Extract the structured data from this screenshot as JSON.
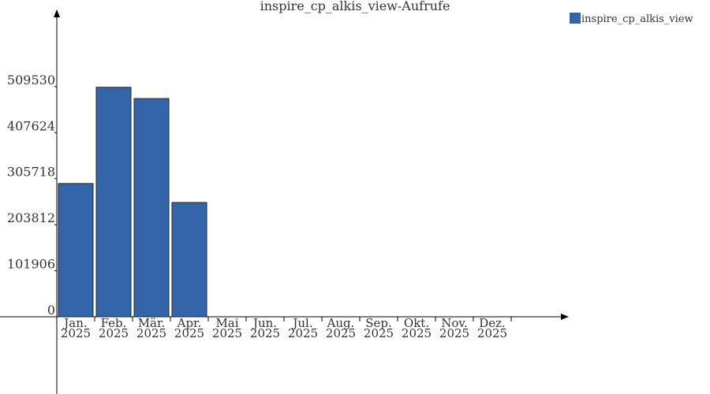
{
  "chart_data": {
    "type": "bar",
    "title": "inspire_cp_alkis_view-Aufrufe",
    "categories": [
      "Jan. 2025",
      "Feb. 2025",
      "Mär. 2025",
      "Apr. 2025",
      "Mai 2025",
      "Jun. 2025",
      "Jul. 2025",
      "Aug. 2025",
      "Sep. 2025",
      "Okt. 2025",
      "Nov. 2025",
      "Dez. 2025"
    ],
    "series": [
      {
        "name": "inspire_cp_alkis_view",
        "color": "#3465a8",
        "values": [
          295000,
          508000,
          483000,
          253000,
          null,
          null,
          null,
          null,
          null,
          null,
          null,
          null
        ]
      }
    ],
    "ylim": [
      0,
      675000
    ],
    "yticks": [
      0,
      101906,
      203812,
      305718,
      407624,
      509530
    ],
    "legend": "top-right"
  }
}
